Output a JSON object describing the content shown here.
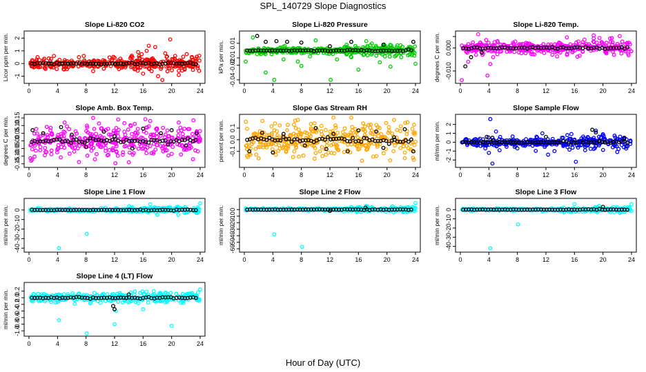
{
  "figure": {
    "title": "SPL_140729  Slope Diagnostics",
    "xlabel": "Hour of Day (UTC)"
  },
  "chart_data": [
    {
      "type": "scatter",
      "title": "Slope Li-820 CO2",
      "ylabel": "Licor ppm per min.",
      "xlim": [
        0,
        24
      ],
      "xticks": [
        0,
        4,
        8,
        12,
        16,
        20,
        24
      ],
      "ylim": [
        -1.4,
        2.4
      ],
      "yticks": [
        -1,
        0,
        1,
        2
      ],
      "ytick_labels": [
        "-1",
        "0",
        "1",
        "2"
      ],
      "colors": {
        "fill": "#ff0000",
        "black": "#000000"
      },
      "noise": [
        {
          "cx": 10,
          "sd": 0.18
        },
        {
          "cx": 18,
          "sd": 0.3
        }
      ],
      "outliers": [
        [
          1.2,
          0.5
        ],
        [
          3.5,
          0.6
        ],
        [
          7,
          0.5
        ],
        [
          9,
          -0.6
        ],
        [
          12,
          0.45
        ],
        [
          14.5,
          0.5
        ],
        [
          15.3,
          0.9
        ],
        [
          16,
          -0.8
        ],
        [
          16.5,
          1.0
        ],
        [
          16.8,
          1.4
        ],
        [
          17.2,
          -0.6
        ],
        [
          17.7,
          1.3
        ],
        [
          18.1,
          -1.0
        ],
        [
          18.7,
          -1.3
        ],
        [
          19.1,
          0.8
        ],
        [
          19.8,
          1.9
        ],
        [
          20.5,
          0.6
        ],
        [
          21,
          -0.9
        ],
        [
          23,
          -0.5
        ]
      ],
      "black_outliers": []
    },
    {
      "type": "scatter",
      "title": "Slope Li-820 Pressure",
      "ylabel": "kPa per min.",
      "xlim": [
        0,
        24
      ],
      "xticks": [
        0,
        4,
        8,
        12,
        16,
        20,
        24
      ],
      "ylim": [
        -0.042,
        0.024
      ],
      "yticks": [
        -0.04,
        -0.02,
        -0.01,
        0.01
      ],
      "ytick_labels": [
        "-0.04",
        "-0.02",
        "-0.01",
        "0.01"
      ],
      "colors": {
        "fill": "#00cc00",
        "black": "#000000"
      },
      "noise": [
        {
          "cx": 10,
          "sd": 0.002
        },
        {
          "cx": 18,
          "sd": 0.004
        }
      ],
      "outliers": [
        [
          0.2,
          -0.015
        ],
        [
          1.2,
          0.018
        ],
        [
          3,
          -0.03
        ],
        [
          4.2,
          -0.04
        ],
        [
          5.5,
          -0.012
        ],
        [
          7.5,
          -0.015
        ],
        [
          8,
          -0.021
        ],
        [
          9.2,
          -0.008
        ],
        [
          10,
          0.014
        ],
        [
          12.1,
          -0.04
        ],
        [
          13,
          -0.012
        ],
        [
          15,
          -0.009
        ],
        [
          16,
          -0.026
        ],
        [
          17.1,
          0.013
        ],
        [
          19,
          -0.016
        ],
        [
          20.5,
          -0.022
        ],
        [
          22,
          -0.009
        ],
        [
          24,
          -0.018
        ]
      ],
      "black_outliers": [
        [
          1.8,
          0.02
        ],
        [
          3,
          0.012
        ],
        [
          4.5,
          0.013
        ],
        [
          6,
          0.012
        ],
        [
          8,
          0.011
        ],
        [
          12,
          0.006
        ],
        [
          15,
          0.012
        ],
        [
          19.5,
          0.008
        ],
        [
          23.7,
          0.012
        ]
      ]
    },
    {
      "type": "scatter",
      "title": "Slope Li-820 Temp.",
      "ylabel": "degrees C per min.",
      "xlim": [
        0,
        24
      ],
      "xticks": [
        0,
        4,
        8,
        12,
        16,
        20,
        24
      ],
      "ylim": [
        -0.0145,
        0.0065
      ],
      "yticks": [
        -0.01,
        0,
        0.005
      ],
      "ytick_labels": [
        "-0.010",
        "0.000",
        ""
      ],
      "colors": {
        "fill": "#ff00ff",
        "black": "#000000"
      },
      "noise": [
        {
          "cx": 10,
          "sd": 0.0012
        },
        {
          "cx": 18,
          "sd": 0.0016
        }
      ],
      "outliers": [
        [
          0.2,
          -0.014
        ],
        [
          1.1,
          -0.006
        ],
        [
          2.5,
          0.006
        ],
        [
          3.1,
          -0.003
        ],
        [
          3.8,
          -0.012
        ],
        [
          4.2,
          -0.007
        ],
        [
          4.6,
          -0.004
        ],
        [
          5.2,
          0.003
        ],
        [
          6.1,
          0.0015
        ]
      ],
      "black_outliers": [
        [
          0.7,
          -0.008
        ],
        [
          1.5,
          -0.004
        ],
        [
          3,
          -0.002
        ]
      ]
    },
    {
      "type": "scatter",
      "title": "Slope Amb. Box Temp.",
      "ylabel": "degrees C per min.",
      "xlim": [
        0,
        24
      ],
      "xticks": [
        0,
        4,
        8,
        12,
        16,
        20,
        24
      ],
      "ylim": [
        -0.16,
        0.16
      ],
      "yticks": [
        -0.15,
        -0.1,
        -0.05,
        0,
        0.05,
        0.1,
        0.15
      ],
      "ytick_labels": [
        "-0.15",
        "-0.10",
        "-0.05",
        "0.00",
        "0.05",
        "0.10",
        "0.15"
      ],
      "colors": {
        "fill": "#ff00ff",
        "black": "#000000"
      },
      "noise": [
        {
          "cx": 10,
          "sd": 0.05
        },
        {
          "cx": 18,
          "sd": 0.05
        }
      ],
      "outliers": [
        [
          0.3,
          -0.13
        ],
        [
          5,
          0.12
        ],
        [
          9,
          0.15
        ],
        [
          12.5,
          0.14
        ],
        [
          14,
          -0.14
        ],
        [
          17,
          0.13
        ],
        [
          21,
          0.12
        ],
        [
          23,
          -0.12
        ]
      ],
      "black_outliers": [
        [
          0.5,
          0.07
        ],
        [
          2,
          0.05
        ],
        [
          4.5,
          0.09
        ],
        [
          6,
          0.04
        ],
        [
          8,
          -0.04
        ],
        [
          10.5,
          0.06
        ],
        [
          12,
          0.03
        ],
        [
          14.5,
          -0.05
        ],
        [
          16,
          0.08
        ],
        [
          18.5,
          0.05
        ],
        [
          20,
          0.07
        ],
        [
          22,
          -0.03
        ],
        [
          23.5,
          0.05
        ]
      ]
    },
    {
      "type": "scatter",
      "title": "Slope Gas Stream RH",
      "ylabel": "percent per min.",
      "xlim": [
        0,
        24
      ],
      "xticks": [
        0,
        4,
        8,
        12,
        16,
        20,
        24
      ],
      "ylim": [
        -0.22,
        0.2
      ],
      "yticks": [
        -0.1,
        0,
        0.1
      ],
      "ytick_labels": [
        "-0.1",
        "0.0",
        "0.1"
      ],
      "colors": {
        "fill": "#ffa500",
        "black": "#000000"
      },
      "noise": [
        {
          "cx": 10,
          "sd": 0.07
        },
        {
          "cx": 18,
          "sd": 0.08
        }
      ],
      "outliers": [
        [
          2,
          -0.16
        ],
        [
          7.5,
          0.17
        ],
        [
          12.5,
          0.19
        ],
        [
          16.5,
          -0.18
        ],
        [
          21,
          0.17
        ]
      ],
      "black_outliers": [
        [
          0.7,
          -0.1
        ],
        [
          2.5,
          0.06
        ],
        [
          4,
          -0.11
        ],
        [
          5.5,
          0.05
        ],
        [
          8.5,
          -0.05
        ],
        [
          10,
          0.1
        ],
        [
          11.5,
          -0.08
        ],
        [
          12.5,
          0.05
        ],
        [
          14.5,
          -0.1
        ],
        [
          16,
          0.08
        ],
        [
          18.5,
          0.07
        ],
        [
          19.5,
          -0.07
        ],
        [
          21,
          0.02
        ],
        [
          22.5,
          0.09
        ],
        [
          23.7,
          -0.1
        ]
      ]
    },
    {
      "type": "scatter",
      "title": "Slope Sample Flow",
      "ylabel": "ml/min per min.",
      "xlim": [
        0,
        24
      ],
      "xticks": [
        0,
        4,
        8,
        12,
        16,
        20,
        24
      ],
      "ylim": [
        -2.6,
        2.9
      ],
      "yticks": [
        -2,
        -1,
        0,
        1,
        2
      ],
      "ytick_labels": [
        "-2",
        "-1",
        "0",
        "1",
        "2"
      ],
      "colors": {
        "fill": "#0000ff",
        "black": "#000000"
      },
      "noise": [
        {
          "cx": 10,
          "sd": 0.22
        },
        {
          "cx": 18,
          "sd": 0.35
        }
      ],
      "outliers": [
        [
          3.5,
          -0.7
        ],
        [
          4,
          -1.2
        ],
        [
          4.2,
          2.6
        ],
        [
          4.5,
          -2.4
        ],
        [
          5,
          1.2
        ],
        [
          5.5,
          -0.9
        ],
        [
          8,
          -0.7
        ],
        [
          11.5,
          1.0
        ],
        [
          12.3,
          -1.4
        ],
        [
          13.2,
          -1.0
        ],
        [
          15,
          0.8
        ],
        [
          16.2,
          -2.2
        ],
        [
          17.5,
          -0.9
        ],
        [
          19,
          1.3
        ],
        [
          20,
          0.9
        ],
        [
          22,
          -1.1
        ]
      ],
      "black_outliers": [
        [
          3.7,
          0.6
        ],
        [
          4.5,
          0.5
        ],
        [
          12,
          0.6
        ],
        [
          18.5,
          1.4
        ],
        [
          19,
          1.1
        ],
        [
          23,
          0.5
        ]
      ]
    },
    {
      "type": "scatter",
      "title": "Slope Line 1 Flow",
      "ylabel": "ml/min per min.",
      "xlim": [
        0,
        24
      ],
      "xticks": [
        0,
        4,
        8,
        12,
        16,
        20,
        24
      ],
      "ylim": [
        -42,
        10
      ],
      "yticks": [
        -40,
        -30,
        -20,
        -10,
        0
      ],
      "ytick_labels": [
        "-40",
        "-30",
        "-20",
        "-10",
        "0"
      ],
      "colors": {
        "fill": "#00ffff",
        "black": "#000000"
      },
      "noise": [
        {
          "cx": 10,
          "sd": 0.7
        },
        {
          "cx": 18,
          "sd": 1.5
        }
      ],
      "outliers": [
        [
          4.2,
          -40
        ],
        [
          8.1,
          -25
        ],
        [
          17,
          6
        ],
        [
          18,
          -5
        ],
        [
          24,
          7
        ]
      ],
      "black_outliers": []
    },
    {
      "type": "scatter",
      "title": "Slope Line 2 Flow",
      "ylabel": "ml/min per min.",
      "xlim": [
        0,
        24
      ],
      "xticks": [
        0,
        4,
        8,
        12,
        16,
        20,
        24
      ],
      "ylim": [
        -62,
        14
      ],
      "yticks": [
        -60,
        -50,
        -40,
        -30,
        -20,
        -10,
        0
      ],
      "ytick_labels": [
        "-60",
        "-50",
        "-40",
        "-30",
        "-20",
        "-10",
        "0"
      ],
      "colors": {
        "fill": "#00ffff",
        "black": "#000000"
      },
      "noise": [
        {
          "cx": 10,
          "sd": 1.0
        },
        {
          "cx": 18,
          "sd": 2.0
        }
      ],
      "outliers": [
        [
          4.2,
          -38
        ],
        [
          8.1,
          -57
        ],
        [
          24,
          10
        ]
      ],
      "black_outliers": [
        [
          12,
          -2
        ],
        [
          17,
          3
        ]
      ]
    },
    {
      "type": "scatter",
      "title": "Slope Line 3 Flow",
      "ylabel": "ml/min per min.",
      "xlim": [
        0,
        24
      ],
      "xticks": [
        0,
        4,
        8,
        12,
        16,
        20,
        24
      ],
      "ylim": [
        -44,
        10
      ],
      "yticks": [
        -40,
        -30,
        -20,
        -10,
        0
      ],
      "ytick_labels": [
        "-40",
        "-30",
        "-20",
        "-10",
        "0"
      ],
      "colors": {
        "fill": "#00ffff",
        "black": "#000000"
      },
      "noise": [
        {
          "cx": 10,
          "sd": 0.6
        },
        {
          "cx": 18,
          "sd": 1.5
        }
      ],
      "outliers": [
        [
          4.2,
          -42
        ],
        [
          8.1,
          -16
        ],
        [
          16,
          6
        ],
        [
          24,
          6
        ]
      ],
      "black_outliers": [
        [
          20,
          3
        ]
      ]
    },
    {
      "type": "scatter",
      "title": "Slope Line 4 (LT) Flow",
      "ylabel": "ml/min per min.",
      "xlim": [
        0,
        24
      ],
      "xticks": [
        0,
        4,
        8,
        12,
        16,
        20,
        24
      ],
      "ylim": [
        -1.1,
        0.4
      ],
      "yticks": [
        -1,
        -0.8,
        -0.6,
        -0.4,
        -0.2,
        0,
        0.2
      ],
      "ytick_labels": [
        "-1.0",
        "-0.8",
        "-0.6",
        "-0.4",
        "-0.2",
        "0.0",
        "0.2"
      ],
      "colors": {
        "fill": "#00ffff",
        "black": "#000000"
      },
      "noise": [
        {
          "cx": 10,
          "sd": 0.06
        },
        {
          "cx": 18,
          "sd": 0.08
        }
      ],
      "outliers": [
        [
          4.2,
          -0.68
        ],
        [
          8.1,
          -1.08
        ],
        [
          12,
          -0.8
        ],
        [
          20,
          -0.85
        ],
        [
          12.2,
          -0.4
        ],
        [
          16,
          -0.35
        ],
        [
          17.5,
          0.2
        ],
        [
          24,
          0.25
        ]
      ],
      "black_outliers": [
        [
          11.8,
          -0.25
        ],
        [
          12,
          -0.35
        ],
        [
          14,
          0.1
        ]
      ]
    }
  ]
}
